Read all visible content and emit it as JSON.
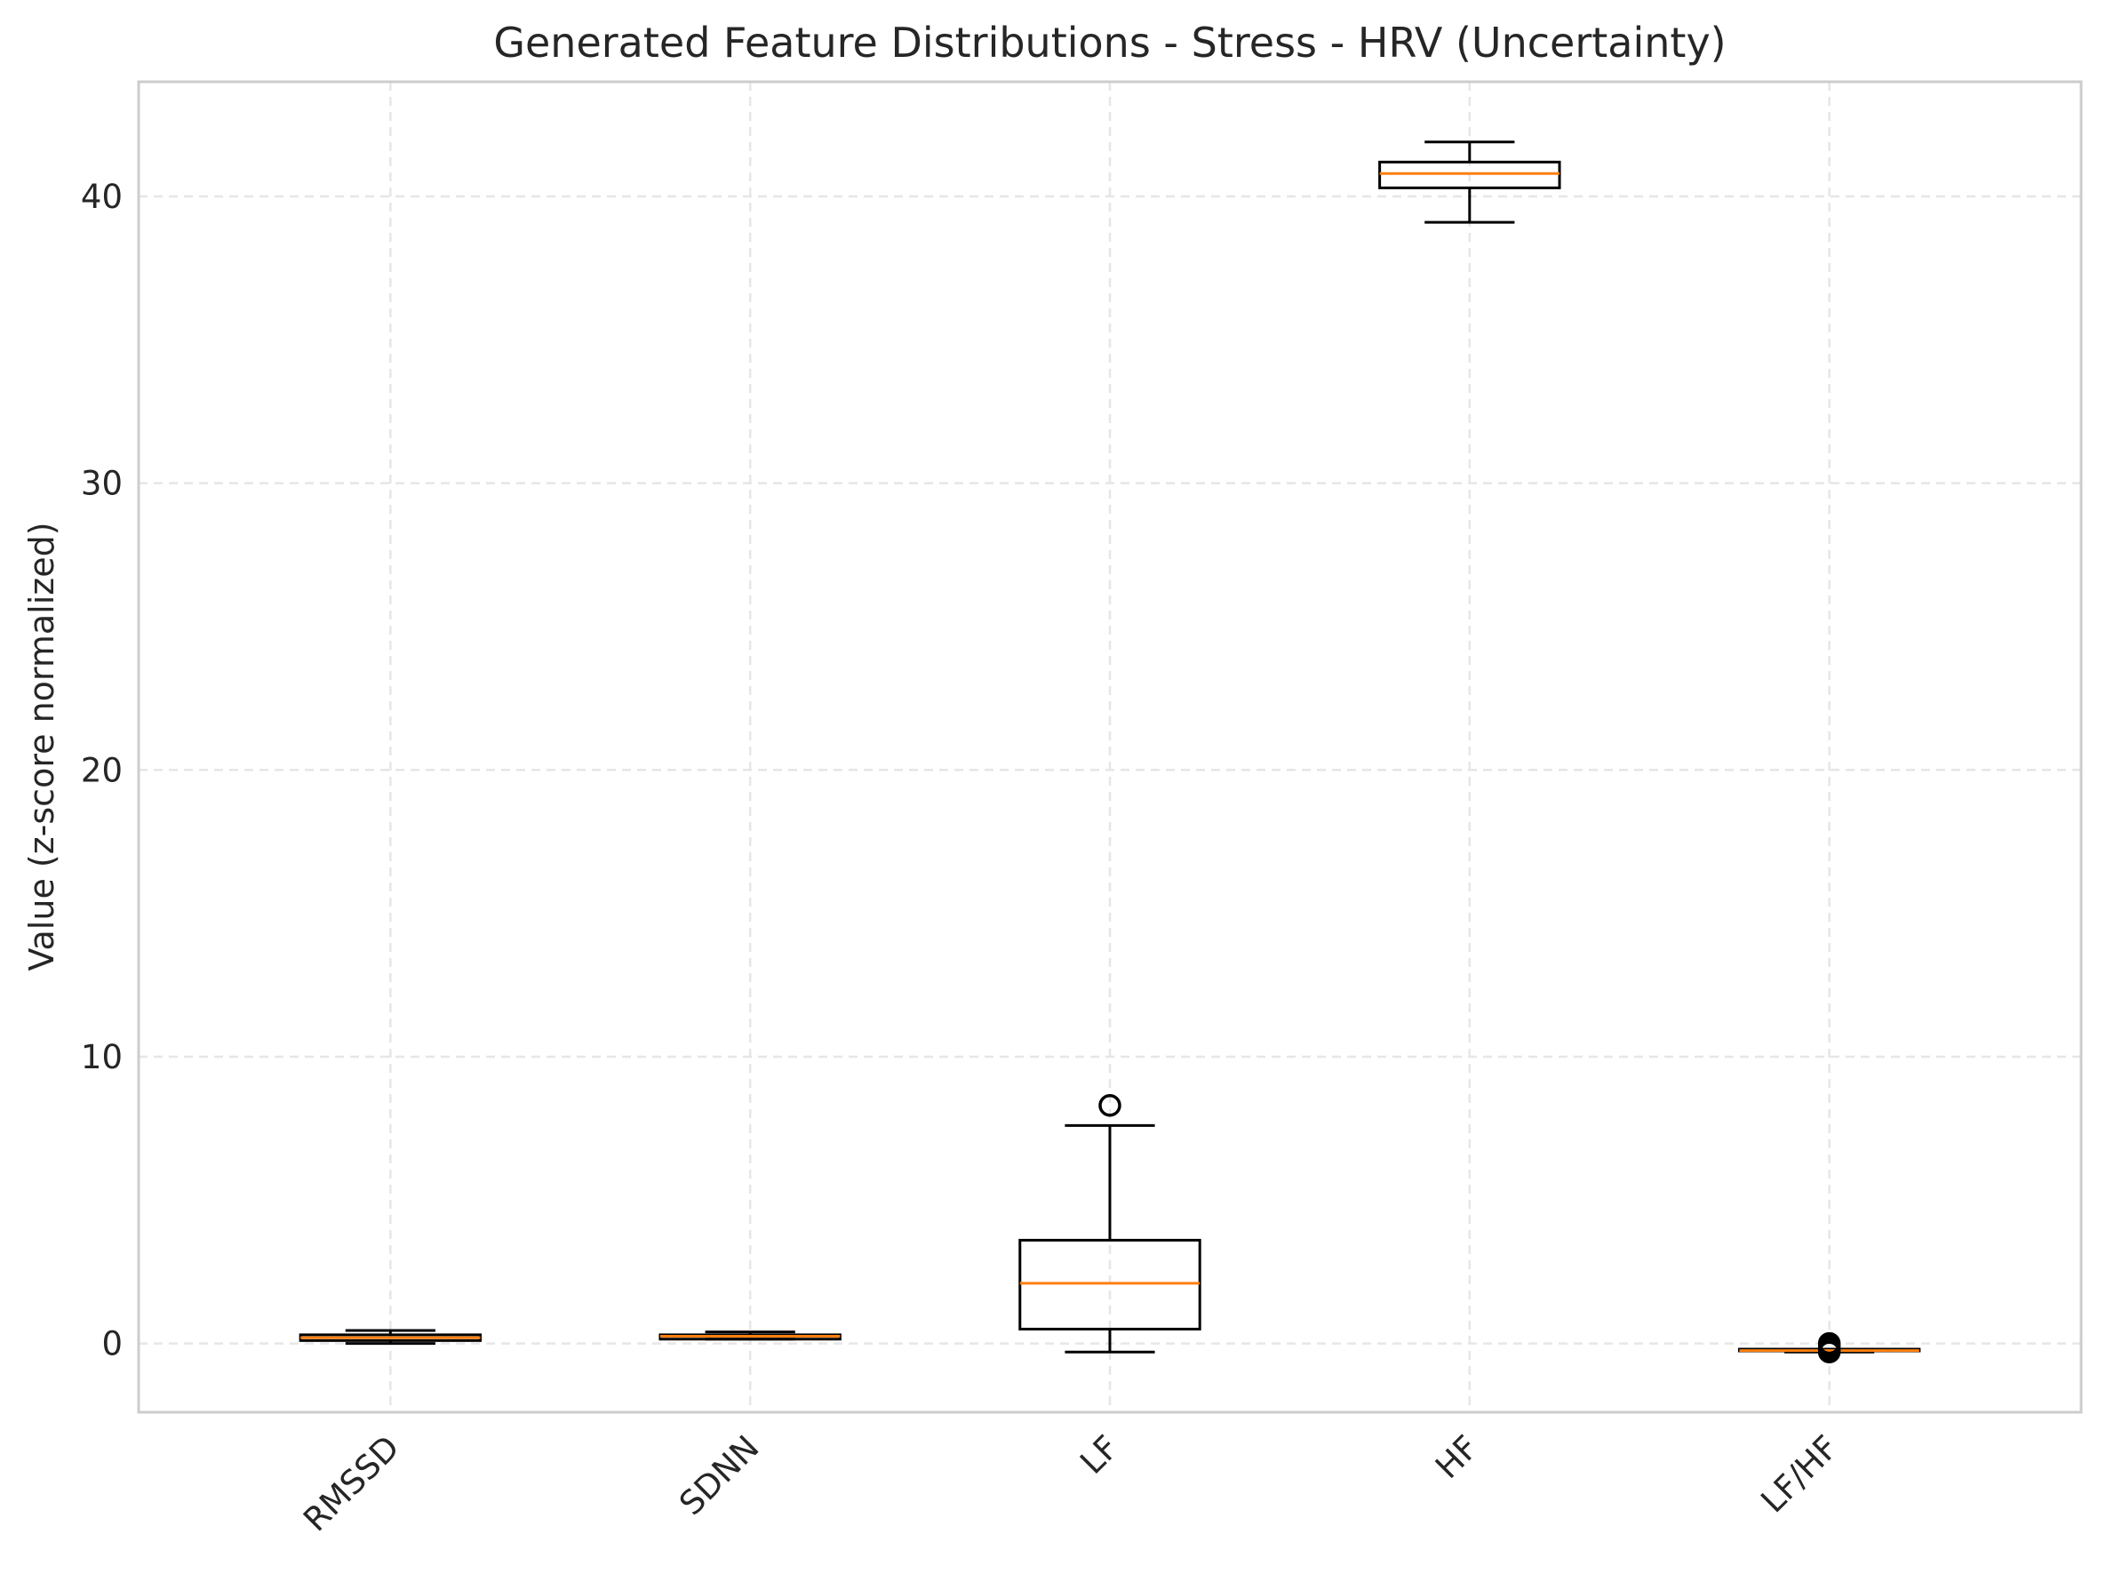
{
  "chart_data": {
    "type": "box",
    "title": "Generated Feature Distributions - Stress - HRV (Uncertainty)",
    "xlabel": "",
    "ylabel": "Value (z-score normalized)",
    "ylim": [
      -2.4,
      44.0
    ],
    "yticks": [
      0,
      10,
      20,
      30,
      40
    ],
    "grid": true,
    "categories": [
      "RMSSD",
      "SDNN",
      "LF",
      "HF",
      "LF/HF"
    ],
    "boxes": [
      {
        "label": "RMSSD",
        "whisker_low": 0.0,
        "q1": 0.1,
        "median": 0.2,
        "q3": 0.3,
        "whisker_high": 0.45,
        "outliers": []
      },
      {
        "label": "SDNN",
        "whisker_low": 0.15,
        "q1": 0.15,
        "median": 0.25,
        "q3": 0.3,
        "whisker_high": 0.4,
        "outliers": []
      },
      {
        "label": "LF",
        "whisker_low": -0.3,
        "q1": 0.5,
        "median": 2.1,
        "q3": 3.6,
        "whisker_high": 7.6,
        "outliers": [
          8.3
        ]
      },
      {
        "label": "HF",
        "whisker_low": 39.1,
        "q1": 40.3,
        "median": 40.8,
        "q3": 41.2,
        "whisker_high": 41.9,
        "outliers": []
      },
      {
        "label": "LF/HF",
        "whisker_low": -0.3,
        "q1": -0.25,
        "median": -0.25,
        "q3": -0.2,
        "whisker_high": -0.2,
        "outliers": [
          -0.3,
          -0.2,
          -0.1,
          0.0
        ]
      }
    ],
    "colors": {
      "box": "#000000",
      "median": "#ff7f0e",
      "grid": "#e6e6e6",
      "axes_edge": "#cccccc"
    }
  }
}
